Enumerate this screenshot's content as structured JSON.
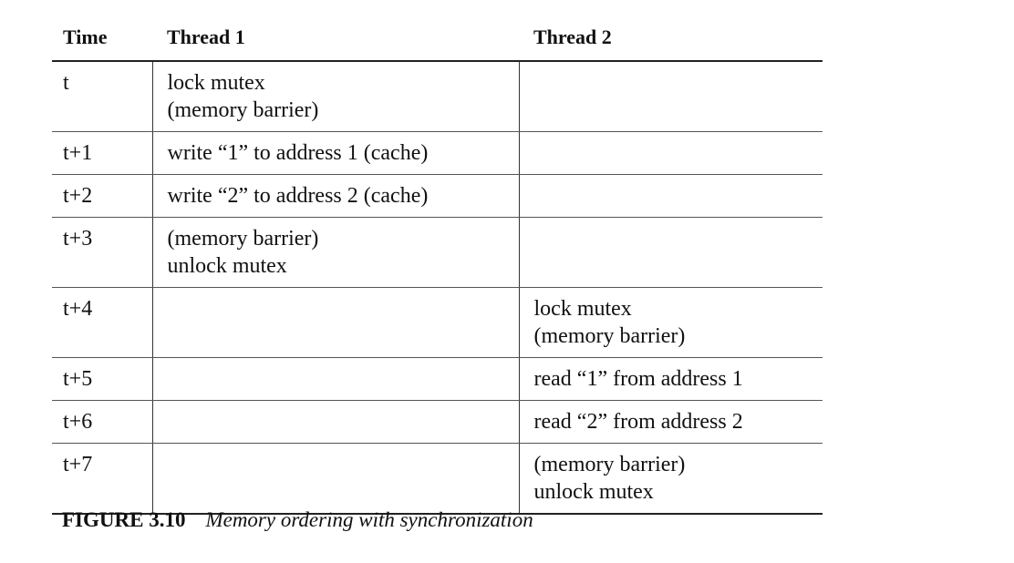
{
  "table": {
    "headers": {
      "time": "Time",
      "thread1": "Thread 1",
      "thread2": "Thread 2"
    },
    "rows": [
      {
        "time": "t",
        "thread1": [
          "lock mutex",
          "(memory barrier)"
        ],
        "thread2": []
      },
      {
        "time": "t+1",
        "thread1": [
          "write “1” to address 1 (cache)"
        ],
        "thread2": []
      },
      {
        "time": "t+2",
        "thread1": [
          "write “2” to address 2 (cache)"
        ],
        "thread2": []
      },
      {
        "time": "t+3",
        "thread1": [
          "(memory barrier)",
          "unlock mutex"
        ],
        "thread2": []
      },
      {
        "time": "t+4",
        "thread1": [],
        "thread2": [
          "lock mutex",
          "(memory barrier)"
        ]
      },
      {
        "time": "t+5",
        "thread1": [],
        "thread2": [
          "read “1” from address 1"
        ]
      },
      {
        "time": "t+6",
        "thread1": [],
        "thread2": [
          "read “2” from address 2"
        ]
      },
      {
        "time": "t+7",
        "thread1": [],
        "thread2": [
          "(memory barrier)",
          "unlock mutex"
        ]
      }
    ]
  },
  "caption": {
    "label": "FIGURE 3.10",
    "text": "Memory ordering with synchronization"
  }
}
